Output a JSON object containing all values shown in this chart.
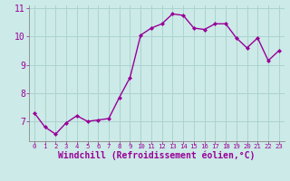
{
  "x": [
    0,
    1,
    2,
    3,
    4,
    5,
    6,
    7,
    8,
    9,
    10,
    11,
    12,
    13,
    14,
    15,
    16,
    17,
    18,
    19,
    20,
    21,
    22,
    23
  ],
  "y": [
    7.3,
    6.8,
    6.55,
    6.95,
    7.2,
    7.0,
    7.05,
    7.1,
    7.85,
    8.55,
    10.05,
    10.3,
    10.45,
    10.8,
    10.75,
    10.3,
    10.25,
    10.45,
    10.45,
    9.95,
    9.6,
    9.95,
    9.15,
    9.5
  ],
  "line_color": "#990099",
  "marker_color": "#990099",
  "bg_color": "#cceae7",
  "grid_color": "#aad4d0",
  "xlabel": "Windchill (Refroidissement éolien,°C)",
  "ylim": [
    6.3,
    11.1
  ],
  "xlim": [
    -0.5,
    23.5
  ],
  "yticks": [
    7,
    8,
    9,
    10,
    11
  ],
  "xticks": [
    0,
    1,
    2,
    3,
    4,
    5,
    6,
    7,
    8,
    9,
    10,
    11,
    12,
    13,
    14,
    15,
    16,
    17,
    18,
    19,
    20,
    21,
    22,
    23
  ],
  "xlabel_fontsize": 7,
  "tick_fontsize": 7,
  "linewidth": 1.0,
  "markersize": 2.0
}
